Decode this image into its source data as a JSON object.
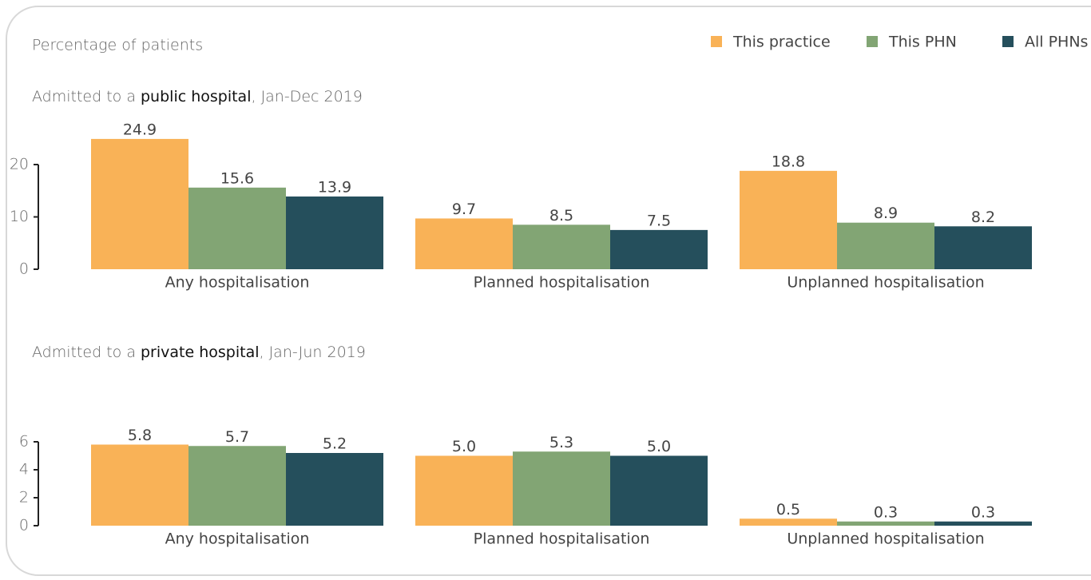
{
  "chart_data": [
    {
      "type": "bar",
      "ylabel": "Percentage of patients",
      "title": "Admitted to a public hospital, Jan-Dec 2019",
      "title_emphasis": "public hospital",
      "categories": [
        "Any hospitalisation",
        "Planned hospitalisation",
        "Unplanned hospitalisation"
      ],
      "series": [
        {
          "name": "This practice",
          "color": "#f9b257",
          "values": [
            24.9,
            9.7,
            18.8
          ]
        },
        {
          "name": "This PHN",
          "color": "#82a574",
          "values": [
            15.6,
            8.5,
            8.9
          ]
        },
        {
          "name": "All PHNs",
          "color": "#254f5c",
          "values": [
            13.9,
            7.5,
            8.2
          ]
        }
      ],
      "ylim": [
        0,
        25
      ],
      "yticks": [
        0,
        10,
        20
      ]
    },
    {
      "type": "bar",
      "title": "Admitted to a private hospital, Jan-Jun 2019",
      "title_emphasis": "private hospital",
      "categories": [
        "Any hospitalisation",
        "Planned hospitalisation",
        "Unplanned hospitalisation"
      ],
      "series": [
        {
          "name": "This practice",
          "color": "#f9b257",
          "values": [
            5.8,
            5.0,
            0.5
          ],
          "value_labels": [
            "5.8",
            "5.0",
            "0.5"
          ]
        },
        {
          "name": "This PHN",
          "color": "#82a574",
          "values": [
            5.7,
            5.3,
            0.3
          ]
        },
        {
          "name": "All PHNs",
          "color": "#254f5c",
          "values": [
            5.2,
            5.0,
            0.3
          ],
          "value_labels": [
            "5.2",
            "5.0",
            "0.3"
          ]
        }
      ],
      "ylim": [
        0,
        6
      ],
      "yticks": [
        0,
        2,
        4,
        6
      ]
    }
  ]
}
